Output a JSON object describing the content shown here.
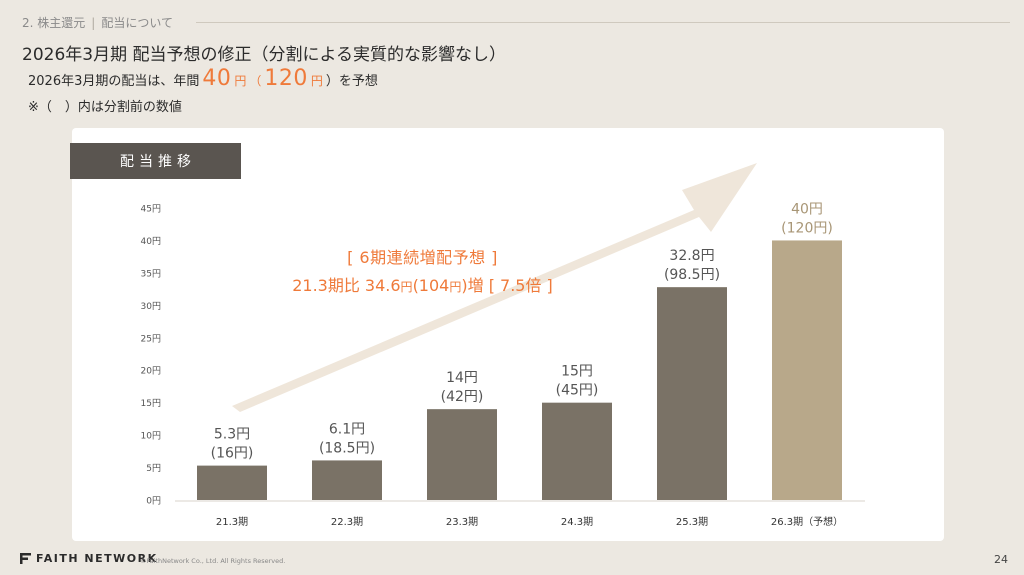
{
  "breadcrumb": {
    "section": "2. 株主還元",
    "page": "配当について"
  },
  "title": "2026年3月期 配当予想の修正（分割による実質的な影響なし）",
  "headline": {
    "prefix": "2026年3月期の配当は、年間",
    "value1": "40",
    "unit1": "円",
    "open_paren": "（",
    "value2": "120",
    "unit2": "円",
    "close_suffix": "）を予想"
  },
  "note": "※（　）内は分割前の数値",
  "legend_tag": "配当推移",
  "annotation": {
    "line1": "[ 6期連続増配予想 ]",
    "line2_a": "21.3期比 34.6",
    "line2_b": "円",
    "line2_c": "(104",
    "line2_d": "円",
    "line2_e": ")増 [ 7.5倍 ]"
  },
  "colors": {
    "bar": "#7a7266",
    "bar_forecast": "#b8a88a",
    "accent": "#ef7a3a",
    "arrow": "#efe6da"
  },
  "chart_data": {
    "type": "bar",
    "categories": [
      "21.3期",
      "22.3期",
      "23.3期",
      "24.3期",
      "25.3期",
      "26.3期（予想）"
    ],
    "values": [
      5.3,
      6.1,
      14,
      15,
      32.8,
      40
    ],
    "value_labels": [
      "5.3円",
      "6.1円",
      "14円",
      "15円",
      "32.8円",
      "40円"
    ],
    "pre_split_labels": [
      "(16円)",
      "(18.5円)",
      "(42円)",
      "(45円)",
      "(98.5円)",
      "(120円)"
    ],
    "forecast_index": 5,
    "ylim": [
      0,
      45
    ],
    "yticks": [
      "0円",
      "5円",
      "10円",
      "15円",
      "20円",
      "25円",
      "30円",
      "35円",
      "40円",
      "45円"
    ],
    "ytick_values": [
      0,
      5,
      10,
      15,
      20,
      25,
      30,
      35,
      40,
      45
    ],
    "grid": false
  },
  "footer": {
    "logo": "FAITH NETWORK",
    "copyright": "©FaithNetwork Co., Ltd. All Rights Reserved.",
    "page": "24"
  }
}
